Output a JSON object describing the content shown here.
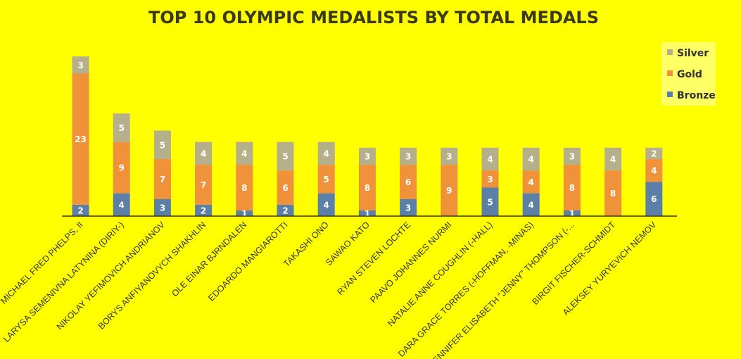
{
  "chart_data": {
    "type": "bar",
    "stacked": true,
    "title": "TOP 10 OLYMPIC MEDALISTS BY TOTAL MEDALS",
    "categories": [
      "MICHAEL FRED PHELPS, II",
      "LARYSA SEMENIVNA LATYNINA (DIRIY-)",
      "NIKOLAY YEFIMOVICH ANDRIANOV",
      "BORYS ANFIYANOVYCH SHAKHLIN",
      "OLE EINAR BJRNDALEN",
      "EDOARDO MANGIAROTTI",
      "TAKASHI ONO",
      "SAWAO KATO",
      "RYAN STEVEN LOCHTE",
      "PAAVO JOHANNES NURMI",
      "NATALIE ANNE COUGHLIN (-HALL)",
      "DARA GRACE TORRES (-HOFFMAN, -MINAS)",
      "JENNIFER ELISABETH \"JENNY\" THOMPSON (-...",
      "BIRGIT FISCHER-SCHMIDT",
      "ALEKSEY YURYEVICH NEMOV"
    ],
    "series": [
      {
        "name": "Bronze",
        "color": "#5B7FA6",
        "values": [
          2,
          4,
          3,
          2,
          1,
          2,
          4,
          1,
          3,
          0,
          5,
          4,
          1,
          0,
          6
        ]
      },
      {
        "name": "Gold",
        "color": "#F0923A",
        "values": [
          23,
          9,
          7,
          7,
          8,
          6,
          5,
          8,
          6,
          9,
          3,
          4,
          8,
          8,
          4
        ]
      },
      {
        "name": "Silver",
        "color": "#B5B08A",
        "values": [
          3,
          5,
          5,
          4,
          4,
          5,
          4,
          3,
          3,
          3,
          4,
          4,
          3,
          4,
          2
        ]
      }
    ],
    "legend_order": [
      "Silver",
      "Gold",
      "Bronze"
    ],
    "legend_position": "top-right",
    "ylim": [
      0,
      28
    ],
    "grid": false
  }
}
